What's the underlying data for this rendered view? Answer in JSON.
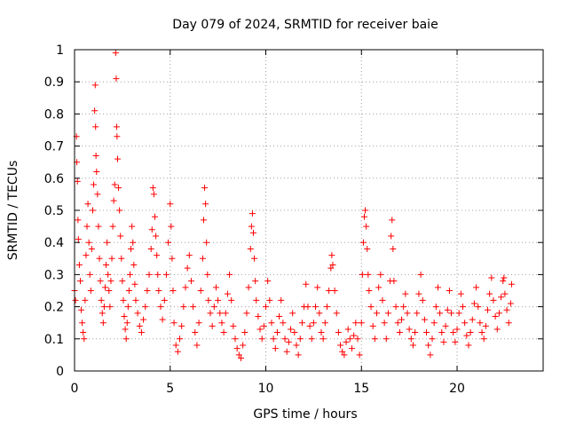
{
  "chart_data": {
    "type": "scatter",
    "title": "Day 079 of 2024, SRMTID for receiver baie",
    "xlabel": "GPS time / hours",
    "ylabel": "SRMTID / TECUs",
    "xlim": [
      0,
      24.5
    ],
    "ylim": [
      0,
      1
    ],
    "xticks": [
      0,
      5,
      10,
      15,
      20
    ],
    "xtick_labels": [
      "0",
      "5",
      "10",
      "15",
      "20"
    ],
    "yticks": [
      0,
      0.1,
      0.2,
      0.3,
      0.4,
      0.5,
      0.6,
      0.7,
      0.8,
      0.9,
      1
    ],
    "ytick_labels": [
      "0",
      "0.1",
      "0.2",
      "0.3",
      "0.4",
      "0.5",
      "0.6",
      "0.7",
      "0.8",
      "0.9",
      "1"
    ],
    "grid": true,
    "marker": "+",
    "color": "#ff0000",
    "series": [
      {
        "name": "SRMTID",
        "points": [
          [
            0.0,
            0.25
          ],
          [
            0.05,
            0.22
          ],
          [
            0.1,
            0.73
          ],
          [
            0.12,
            0.65
          ],
          [
            0.15,
            0.59
          ],
          [
            0.18,
            0.47
          ],
          [
            0.2,
            0.41
          ],
          [
            0.25,
            0.33
          ],
          [
            0.3,
            0.28
          ],
          [
            0.35,
            0.19
          ],
          [
            0.4,
            0.15
          ],
          [
            0.45,
            0.12
          ],
          [
            0.5,
            0.1
          ],
          [
            0.55,
            0.22
          ],
          [
            0.6,
            0.36
          ],
          [
            0.65,
            0.45
          ],
          [
            0.7,
            0.52
          ],
          [
            0.75,
            0.4
          ],
          [
            0.8,
            0.3
          ],
          [
            0.85,
            0.25
          ],
          [
            0.9,
            0.38
          ],
          [
            0.95,
            0.5
          ],
          [
            1.0,
            0.58
          ],
          [
            1.05,
            0.81
          ],
          [
            1.08,
            0.89
          ],
          [
            1.1,
            0.76
          ],
          [
            1.12,
            0.67
          ],
          [
            1.15,
            0.62
          ],
          [
            1.2,
            0.55
          ],
          [
            1.25,
            0.45
          ],
          [
            1.3,
            0.35
          ],
          [
            1.35,
            0.28
          ],
          [
            1.4,
            0.22
          ],
          [
            1.45,
            0.18
          ],
          [
            1.5,
            0.15
          ],
          [
            1.55,
            0.2
          ],
          [
            1.6,
            0.26
          ],
          [
            1.65,
            0.33
          ],
          [
            1.7,
            0.4
          ],
          [
            1.75,
            0.3
          ],
          [
            1.8,
            0.25
          ],
          [
            1.85,
            0.2
          ],
          [
            1.9,
            0.28
          ],
          [
            1.95,
            0.35
          ],
          [
            2.0,
            0.45
          ],
          [
            2.05,
            0.53
          ],
          [
            2.1,
            0.58
          ],
          [
            2.15,
            0.99
          ],
          [
            2.18,
            0.91
          ],
          [
            2.2,
            0.76
          ],
          [
            2.22,
            0.73
          ],
          [
            2.25,
            0.66
          ],
          [
            2.3,
            0.57
          ],
          [
            2.35,
            0.5
          ],
          [
            2.4,
            0.42
          ],
          [
            2.45,
            0.35
          ],
          [
            2.5,
            0.28
          ],
          [
            2.55,
            0.22
          ],
          [
            2.6,
            0.17
          ],
          [
            2.65,
            0.13
          ],
          [
            2.7,
            0.1
          ],
          [
            2.75,
            0.15
          ],
          [
            2.8,
            0.2
          ],
          [
            2.85,
            0.25
          ],
          [
            2.9,
            0.3
          ],
          [
            2.95,
            0.38
          ],
          [
            3.0,
            0.45
          ],
          [
            3.05,
            0.4
          ],
          [
            3.1,
            0.33
          ],
          [
            3.15,
            0.27
          ],
          [
            3.2,
            0.22
          ],
          [
            3.3,
            0.18
          ],
          [
            3.4,
            0.14
          ],
          [
            3.5,
            0.12
          ],
          [
            3.6,
            0.16
          ],
          [
            3.7,
            0.2
          ],
          [
            3.8,
            0.25
          ],
          [
            3.9,
            0.3
          ],
          [
            4.0,
            0.38
          ],
          [
            4.05,
            0.44
          ],
          [
            4.1,
            0.57
          ],
          [
            4.15,
            0.55
          ],
          [
            4.2,
            0.48
          ],
          [
            4.25,
            0.42
          ],
          [
            4.3,
            0.36
          ],
          [
            4.35,
            0.3
          ],
          [
            4.4,
            0.25
          ],
          [
            4.5,
            0.2
          ],
          [
            4.6,
            0.16
          ],
          [
            4.7,
            0.22
          ],
          [
            4.8,
            0.3
          ],
          [
            4.9,
            0.4
          ],
          [
            5.0,
            0.52
          ],
          [
            5.05,
            0.45
          ],
          [
            5.1,
            0.35
          ],
          [
            5.15,
            0.25
          ],
          [
            5.2,
            0.15
          ],
          [
            5.3,
            0.08
          ],
          [
            5.4,
            0.06
          ],
          [
            5.5,
            0.1
          ],
          [
            5.6,
            0.14
          ],
          [
            5.7,
            0.2
          ],
          [
            5.8,
            0.26
          ],
          [
            5.9,
            0.32
          ],
          [
            6.0,
            0.36
          ],
          [
            6.1,
            0.28
          ],
          [
            6.2,
            0.2
          ],
          [
            6.3,
            0.12
          ],
          [
            6.4,
            0.08
          ],
          [
            6.5,
            0.15
          ],
          [
            6.6,
            0.25
          ],
          [
            6.7,
            0.35
          ],
          [
            6.75,
            0.47
          ],
          [
            6.8,
            0.57
          ],
          [
            6.85,
            0.52
          ],
          [
            6.9,
            0.4
          ],
          [
            6.95,
            0.3
          ],
          [
            7.0,
            0.22
          ],
          [
            7.1,
            0.18
          ],
          [
            7.2,
            0.14
          ],
          [
            7.3,
            0.2
          ],
          [
            7.4,
            0.26
          ],
          [
            7.5,
            0.22
          ],
          [
            7.6,
            0.18
          ],
          [
            7.7,
            0.15
          ],
          [
            7.8,
            0.12
          ],
          [
            7.9,
            0.18
          ],
          [
            8.0,
            0.24
          ],
          [
            8.1,
            0.3
          ],
          [
            8.2,
            0.22
          ],
          [
            8.3,
            0.14
          ],
          [
            8.4,
            0.1
          ],
          [
            8.5,
            0.07
          ],
          [
            8.6,
            0.05
          ],
          [
            8.7,
            0.04
          ],
          [
            8.8,
            0.08
          ],
          [
            8.9,
            0.12
          ],
          [
            9.0,
            0.18
          ],
          [
            9.1,
            0.26
          ],
          [
            9.2,
            0.38
          ],
          [
            9.25,
            0.45
          ],
          [
            9.3,
            0.49
          ],
          [
            9.35,
            0.43
          ],
          [
            9.4,
            0.35
          ],
          [
            9.45,
            0.28
          ],
          [
            9.5,
            0.22
          ],
          [
            9.6,
            0.17
          ],
          [
            9.7,
            0.13
          ],
          [
            9.8,
            0.1
          ],
          [
            9.9,
            0.14
          ],
          [
            10.0,
            0.2
          ],
          [
            10.1,
            0.28
          ],
          [
            10.2,
            0.22
          ],
          [
            10.3,
            0.15
          ],
          [
            10.4,
            0.1
          ],
          [
            10.5,
            0.07
          ],
          [
            10.6,
            0.12
          ],
          [
            10.7,
            0.17
          ],
          [
            10.8,
            0.22
          ],
          [
            10.9,
            0.15
          ],
          [
            11.0,
            0.1
          ],
          [
            11.1,
            0.06
          ],
          [
            11.2,
            0.09
          ],
          [
            11.3,
            0.13
          ],
          [
            11.4,
            0.18
          ],
          [
            11.5,
            0.12
          ],
          [
            11.6,
            0.08
          ],
          [
            11.7,
            0.05
          ],
          [
            11.8,
            0.1
          ],
          [
            11.9,
            0.15
          ],
          [
            12.0,
            0.2
          ],
          [
            12.1,
            0.27
          ],
          [
            12.2,
            0.2
          ],
          [
            12.3,
            0.14
          ],
          [
            12.4,
            0.1
          ],
          [
            12.5,
            0.15
          ],
          [
            12.6,
            0.2
          ],
          [
            12.7,
            0.26
          ],
          [
            12.8,
            0.18
          ],
          [
            12.9,
            0.12
          ],
          [
            13.0,
            0.1
          ],
          [
            13.1,
            0.15
          ],
          [
            13.2,
            0.2
          ],
          [
            13.3,
            0.25
          ],
          [
            13.4,
            0.32
          ],
          [
            13.45,
            0.36
          ],
          [
            13.5,
            0.33
          ],
          [
            13.6,
            0.25
          ],
          [
            13.7,
            0.18
          ],
          [
            13.8,
            0.12
          ],
          [
            13.9,
            0.08
          ],
          [
            14.0,
            0.06
          ],
          [
            14.1,
            0.05
          ],
          [
            14.2,
            0.09
          ],
          [
            14.3,
            0.13
          ],
          [
            14.4,
            0.1
          ],
          [
            14.5,
            0.07
          ],
          [
            14.6,
            0.11
          ],
          [
            14.7,
            0.15
          ],
          [
            14.8,
            0.1
          ],
          [
            14.9,
            0.05
          ],
          [
            15.0,
            0.15
          ],
          [
            15.05,
            0.3
          ],
          [
            15.1,
            0.4
          ],
          [
            15.15,
            0.48
          ],
          [
            15.2,
            0.5
          ],
          [
            15.25,
            0.45
          ],
          [
            15.3,
            0.38
          ],
          [
            15.35,
            0.3
          ],
          [
            15.4,
            0.25
          ],
          [
            15.5,
            0.2
          ],
          [
            15.6,
            0.14
          ],
          [
            15.7,
            0.1
          ],
          [
            15.8,
            0.18
          ],
          [
            15.9,
            0.26
          ],
          [
            16.0,
            0.3
          ],
          [
            16.1,
            0.22
          ],
          [
            16.2,
            0.15
          ],
          [
            16.3,
            0.1
          ],
          [
            16.4,
            0.18
          ],
          [
            16.5,
            0.28
          ],
          [
            16.55,
            0.42
          ],
          [
            16.6,
            0.47
          ],
          [
            16.65,
            0.38
          ],
          [
            16.7,
            0.28
          ],
          [
            16.8,
            0.2
          ],
          [
            16.9,
            0.15
          ],
          [
            17.0,
            0.12
          ],
          [
            17.1,
            0.16
          ],
          [
            17.2,
            0.2
          ],
          [
            17.3,
            0.24
          ],
          [
            17.4,
            0.18
          ],
          [
            17.5,
            0.13
          ],
          [
            17.6,
            0.1
          ],
          [
            17.7,
            0.08
          ],
          [
            17.8,
            0.12
          ],
          [
            17.9,
            0.18
          ],
          [
            18.0,
            0.24
          ],
          [
            18.1,
            0.3
          ],
          [
            18.2,
            0.22
          ],
          [
            18.3,
            0.16
          ],
          [
            18.4,
            0.12
          ],
          [
            18.5,
            0.08
          ],
          [
            18.6,
            0.05
          ],
          [
            18.7,
            0.1
          ],
          [
            18.8,
            0.15
          ],
          [
            18.9,
            0.2
          ],
          [
            19.0,
            0.26
          ],
          [
            19.1,
            0.18
          ],
          [
            19.2,
            0.12
          ],
          [
            19.3,
            0.09
          ],
          [
            19.4,
            0.14
          ],
          [
            19.5,
            0.19
          ],
          [
            19.6,
            0.25
          ],
          [
            19.7,
            0.18
          ],
          [
            19.8,
            0.12
          ],
          [
            19.9,
            0.09
          ],
          [
            20.0,
            0.13
          ],
          [
            20.1,
            0.18
          ],
          [
            20.2,
            0.24
          ],
          [
            20.3,
            0.2
          ],
          [
            20.4,
            0.15
          ],
          [
            20.5,
            0.11
          ],
          [
            20.6,
            0.08
          ],
          [
            20.7,
            0.12
          ],
          [
            20.8,
            0.16
          ],
          [
            20.9,
            0.21
          ],
          [
            21.0,
            0.26
          ],
          [
            21.1,
            0.2
          ],
          [
            21.2,
            0.15
          ],
          [
            21.3,
            0.12
          ],
          [
            21.4,
            0.1
          ],
          [
            21.5,
            0.14
          ],
          [
            21.6,
            0.19
          ],
          [
            21.7,
            0.24
          ],
          [
            21.8,
            0.29
          ],
          [
            21.9,
            0.22
          ],
          [
            22.0,
            0.17
          ],
          [
            22.1,
            0.13
          ],
          [
            22.2,
            0.18
          ],
          [
            22.3,
            0.23
          ],
          [
            22.4,
            0.28
          ],
          [
            22.45,
            0.29
          ],
          [
            22.5,
            0.24
          ],
          [
            22.6,
            0.19
          ],
          [
            22.7,
            0.15
          ],
          [
            22.8,
            0.21
          ],
          [
            22.85,
            0.27
          ]
        ]
      }
    ]
  }
}
